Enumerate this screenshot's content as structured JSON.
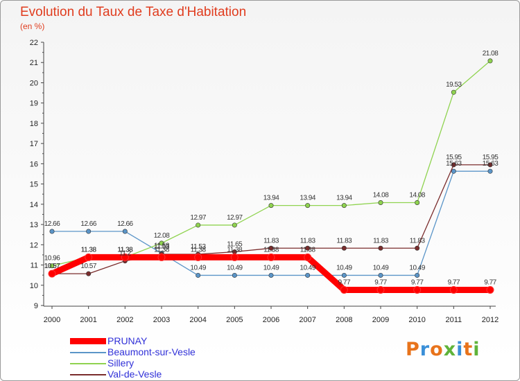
{
  "header": {
    "title": "Evolution du Taux de Taxe d'Habitation",
    "subtitle": "(en %)"
  },
  "logo": {
    "text": "Proxiti",
    "colors": [
      "#e8731b",
      "#3a8fd8",
      "#e8731b",
      "#5fb33a",
      "#3a8fd8",
      "#e8731b",
      "#5fb33a"
    ]
  },
  "chart_data": {
    "type": "line",
    "x": [
      "2000",
      "2001",
      "2002",
      "2003",
      "2004",
      "2005",
      "2006",
      "2007",
      "2008",
      "2009",
      "2010",
      "2011",
      "2012"
    ],
    "ylim": [
      9,
      22
    ],
    "yticks": [
      "9",
      "10",
      "11",
      "12",
      "13",
      "14",
      "15",
      "16",
      "17",
      "18",
      "19",
      "20",
      "21",
      "22"
    ],
    "grid": false,
    "legend_placement": "bottom-left",
    "series": [
      {
        "name": "PRUNAY",
        "color": "#ff0000",
        "values": [
          10.57,
          11.38,
          11.38,
          11.38,
          11.38,
          11.38,
          11.38,
          11.38,
          9.77,
          9.77,
          9.77,
          9.77,
          9.77
        ],
        "labels": [
          "10.57",
          "11.38",
          "11.38",
          "11.38",
          "11.38",
          "11.38",
          "11.38",
          "11.38",
          "9.77",
          "9.77",
          "9.77",
          "9.77",
          "9.77"
        ]
      },
      {
        "name": "Beaumont-sur-Vesle",
        "color": "#5b95c8",
        "values": [
          12.66,
          12.66,
          12.66,
          11.58,
          10.49,
          10.49,
          10.49,
          10.49,
          10.49,
          10.49,
          10.49,
          15.63,
          15.63
        ],
        "labels": [
          "12.66",
          "12.66",
          "12.66",
          "11.58",
          "10.49",
          "10.49",
          "10.49",
          "10.49",
          "10.49",
          "10.49",
          "10.49",
          "15.63",
          "15.63"
        ]
      },
      {
        "name": "Sillery",
        "color": "#8fd34f",
        "values": [
          10.96,
          11.38,
          11.38,
          12.08,
          12.97,
          12.97,
          13.94,
          13.94,
          13.94,
          14.08,
          14.08,
          19.53,
          21.08
        ],
        "labels": [
          "10.96",
          "11.38",
          "11.38",
          "12.08",
          "12.97",
          "12.97",
          "13.94",
          "13.94",
          "13.94",
          "14.08",
          "14.08",
          "19.53",
          "21.08"
        ]
      },
      {
        "name": "Val-de-Vesle",
        "color": "#7a2c2c",
        "values": [
          10.57,
          10.57,
          11.2,
          11.53,
          11.53,
          11.65,
          11.83,
          11.83,
          11.83,
          11.83,
          11.83,
          15.95,
          15.95
        ],
        "labels": [
          "10.57",
          "10.57",
          "11.2",
          "11.53",
          "11.53",
          "11.65",
          "11.83",
          "11.83",
          "11.83",
          "11.83",
          "11.83",
          "15.95",
          "15.95"
        ]
      }
    ]
  }
}
